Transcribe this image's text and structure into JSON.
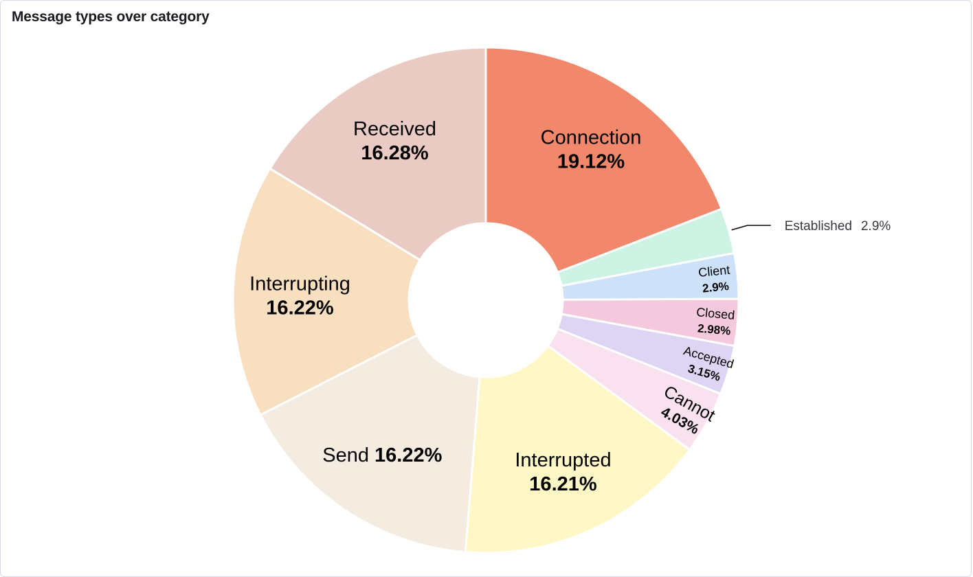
{
  "panel": {
    "title": "Message types over category"
  },
  "chart_data": {
    "type": "pie",
    "donut": true,
    "title": "Message types over category",
    "slices": [
      {
        "label": "Connection",
        "value": 19.12,
        "display": "19.12%",
        "color": "#f1876b"
      },
      {
        "label": "Established",
        "value": 2.9,
        "display": "2.9%",
        "color": "#cdf3e4"
      },
      {
        "label": "Client",
        "value": 2.9,
        "display": "2.9%",
        "color": "#cde1f8"
      },
      {
        "label": "Closed",
        "value": 2.98,
        "display": "2.98%",
        "color": "#f5c9dd"
      },
      {
        "label": "Accepted",
        "value": 3.15,
        "display": "3.15%",
        "color": "#ded5f4"
      },
      {
        "label": "Cannot",
        "value": 4.03,
        "display": "4.03%",
        "color": "#f9e1f0"
      },
      {
        "label": "Interrupted",
        "value": 16.21,
        "display": "16.21%",
        "color": "#fff7c6"
      },
      {
        "label": "Send",
        "value": 16.22,
        "display": "16.22%",
        "color": "#f4ece1"
      },
      {
        "label": "Interrupting",
        "value": 16.22,
        "display": "16.22%",
        "color": "#f8dfc0"
      },
      {
        "label": "Received",
        "value": 16.28,
        "display": "16.28%",
        "color": "#e9cbc4"
      }
    ]
  }
}
